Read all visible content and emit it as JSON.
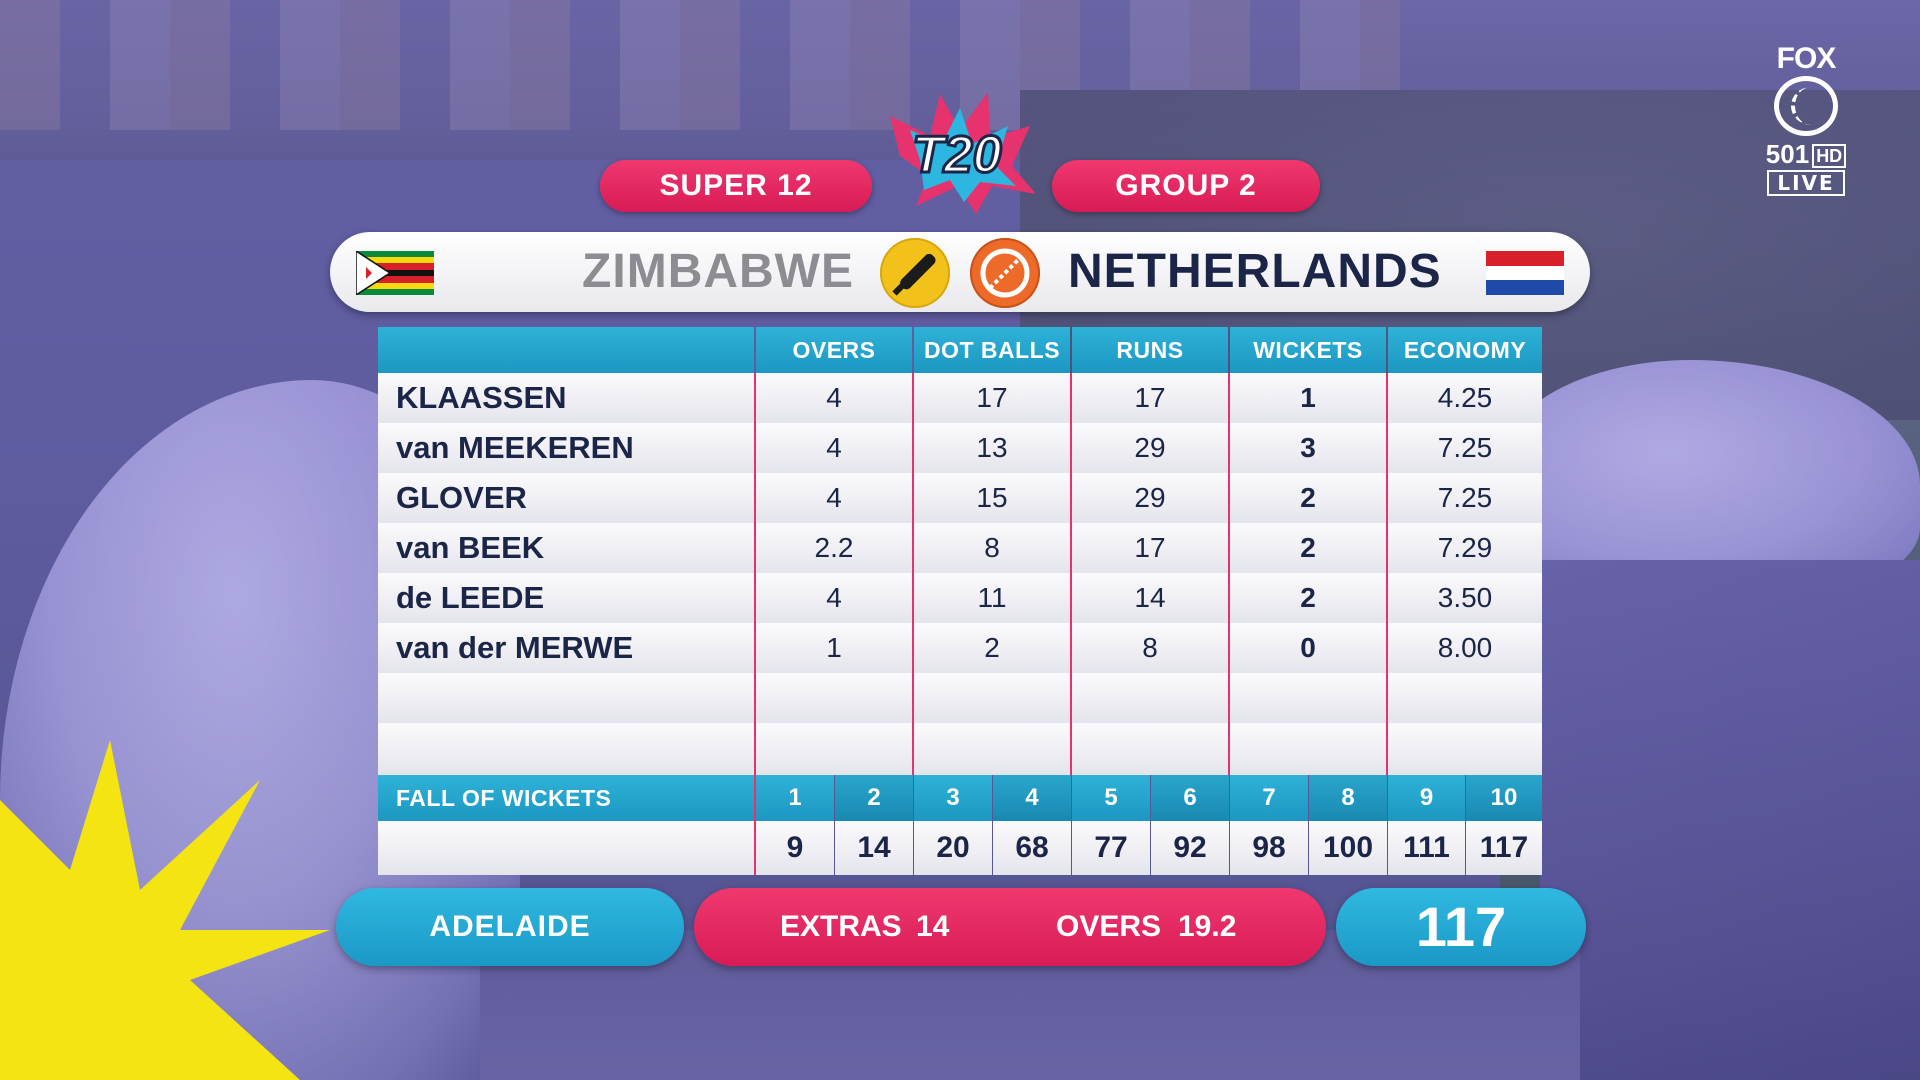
{
  "header": {
    "stage": "SUPER 12",
    "group": "GROUP 2",
    "tournament_logo_text": "T20"
  },
  "broadcaster": {
    "logo": "FOX",
    "channel": "501",
    "hd": "HD",
    "live": "LIVE"
  },
  "teams": {
    "batting": {
      "name": "ZIMBABWE",
      "flag": "zimbabwe-flag",
      "icon": "bat-icon",
      "color": "#f2c21b"
    },
    "bowling": {
      "name": "NETHERLANDS",
      "flag": "netherlands-flag",
      "icon": "ball-icon",
      "color": "#ee6a28"
    }
  },
  "table": {
    "columns": [
      "OVERS",
      "DOT BALLS",
      "RUNS",
      "WICKETS",
      "ECONOMY"
    ],
    "rows": [
      {
        "name": "KLAASSEN",
        "overs": "4",
        "dots": "17",
        "runs": "17",
        "wickets": "1",
        "economy": "4.25"
      },
      {
        "name": "van MEEKEREN",
        "overs": "4",
        "dots": "13",
        "runs": "29",
        "wickets": "3",
        "economy": "7.25"
      },
      {
        "name": "GLOVER",
        "overs": "4",
        "dots": "15",
        "runs": "29",
        "wickets": "2",
        "economy": "7.25"
      },
      {
        "name": "van BEEK",
        "overs": "2.2",
        "dots": "8",
        "runs": "17",
        "wickets": "2",
        "economy": "7.29"
      },
      {
        "name": "de LEEDE",
        "overs": "4",
        "dots": "11",
        "runs": "14",
        "wickets": "2",
        "economy": "3.50"
      },
      {
        "name": "van der MERWE",
        "overs": "1",
        "dots": "2",
        "runs": "8",
        "wickets": "0",
        "economy": "8.00"
      }
    ]
  },
  "fall_of_wickets": {
    "label": "FALL OF WICKETS",
    "numbers": [
      "1",
      "2",
      "3",
      "4",
      "5",
      "6",
      "7",
      "8",
      "9",
      "10"
    ],
    "scores": [
      "9",
      "14",
      "20",
      "68",
      "77",
      "92",
      "98",
      "100",
      "111",
      "117"
    ]
  },
  "footer": {
    "venue": "ADELAIDE",
    "extras_label": "EXTRAS",
    "extras_value": "14",
    "overs_label": "OVERS",
    "overs_value": "19.2",
    "total": "117"
  },
  "colors": {
    "pink": "#e0245e",
    "cyan": "#1fa4cf",
    "navy": "#1b2547"
  }
}
